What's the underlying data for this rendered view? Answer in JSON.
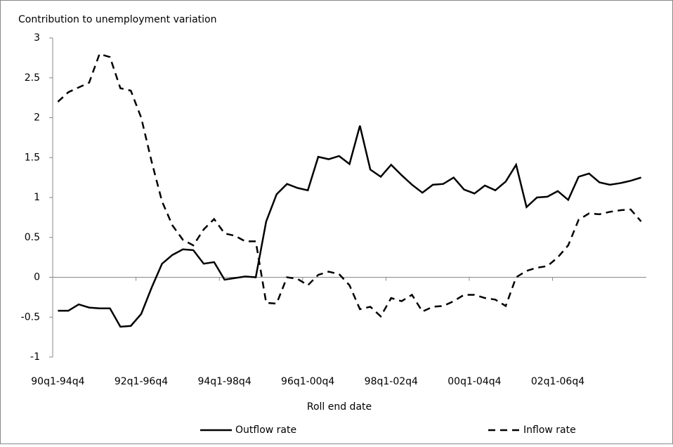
{
  "chart_data": {
    "type": "line",
    "y_axis_title": "Contribution to unemployment variation",
    "x_axis_title": "Roll end date",
    "categories": [
      "90q1-94q4",
      null,
      null,
      null,
      null,
      null,
      null,
      null,
      "92q1-96q4",
      null,
      null,
      null,
      null,
      null,
      null,
      null,
      "94q1-98q4",
      null,
      null,
      null,
      null,
      null,
      null,
      null,
      "96q1-00q4",
      null,
      null,
      null,
      null,
      null,
      null,
      null,
      "98q1-02q4",
      null,
      null,
      null,
      null,
      null,
      null,
      null,
      "00q1-04q4",
      null,
      null,
      null,
      null,
      null,
      null,
      null,
      "02q1-06q4",
      null,
      null,
      null,
      null,
      null,
      null,
      null,
      null
    ],
    "series": [
      {
        "name": "Outflow rate",
        "color": "#000000",
        "dash": "solid",
        "values": [
          -0.42,
          -0.42,
          -0.34,
          -0.38,
          -0.39,
          -0.39,
          -0.62,
          -0.61,
          -0.46,
          -0.13,
          0.17,
          0.28,
          0.35,
          0.34,
          0.17,
          0.19,
          -0.03,
          -0.01,
          0.01,
          0.0,
          0.7,
          1.04,
          1.17,
          1.12,
          1.09,
          1.51,
          1.48,
          1.52,
          1.42,
          1.9,
          1.35,
          1.26,
          1.41,
          1.28,
          1.16,
          1.06,
          1.16,
          1.17,
          1.25,
          1.1,
          1.05,
          1.15,
          1.09,
          1.2,
          1.41,
          0.88,
          1.0,
          1.01,
          1.08,
          0.97,
          1.26,
          1.3,
          1.19,
          1.16,
          1.18,
          1.21,
          1.25
        ]
      },
      {
        "name": "Inflow rate",
        "color": "#000000",
        "dash": "dashed",
        "values": [
          2.2,
          2.32,
          2.38,
          2.44,
          2.8,
          2.76,
          2.37,
          2.34,
          2.0,
          1.45,
          0.95,
          0.65,
          0.47,
          0.4,
          0.6,
          0.73,
          0.55,
          0.52,
          0.45,
          0.45,
          -0.32,
          -0.33,
          0.0,
          -0.02,
          -0.1,
          0.03,
          0.07,
          0.04,
          -0.1,
          -0.4,
          -0.37,
          -0.49,
          -0.26,
          -0.3,
          -0.22,
          -0.43,
          -0.37,
          -0.36,
          -0.3,
          -0.22,
          -0.22,
          -0.26,
          -0.28,
          -0.36,
          0.0,
          0.08,
          0.12,
          0.14,
          0.25,
          0.4,
          0.72,
          0.8,
          0.79,
          0.82,
          0.84,
          0.85,
          0.7
        ]
      }
    ],
    "ylim": [
      -1,
      3
    ],
    "yticks": [
      -1,
      -0.5,
      0,
      0.5,
      1,
      1.5,
      2,
      2.5,
      3
    ],
    "grid": false,
    "legend": "bottom"
  }
}
